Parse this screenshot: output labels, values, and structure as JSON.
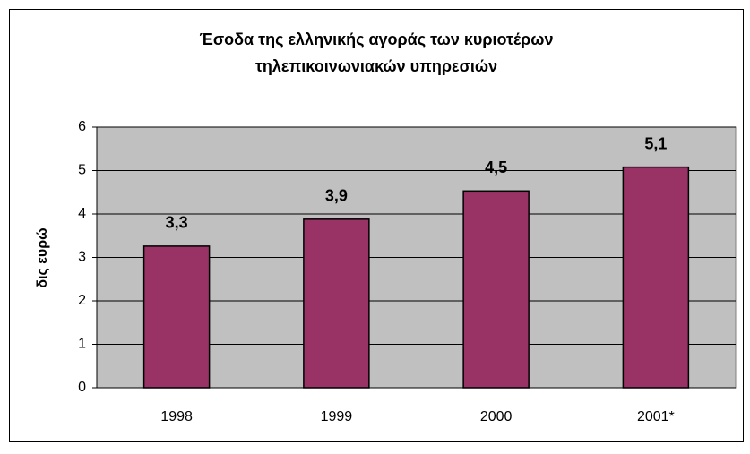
{
  "chart_data": {
    "type": "bar",
    "title": [
      "Έσοδα της ελληνικής αγοράς των κυριοτέρων",
      "τηλεπικοινωνιακών υπηρεσιών"
    ],
    "y_label": "δις ευρώ",
    "categories": [
      "1998",
      "1999",
      "2000",
      "2001*"
    ],
    "values": [
      3.26,
      3.88,
      4.53,
      5.08
    ],
    "value_labels": [
      "3,3",
      "3,9",
      "4,5",
      "5,1"
    ],
    "color": "#993366",
    "ylim": [
      0,
      6
    ],
    "yticks": [
      0,
      1,
      2,
      3,
      4,
      5,
      6
    ],
    "grid": true
  }
}
